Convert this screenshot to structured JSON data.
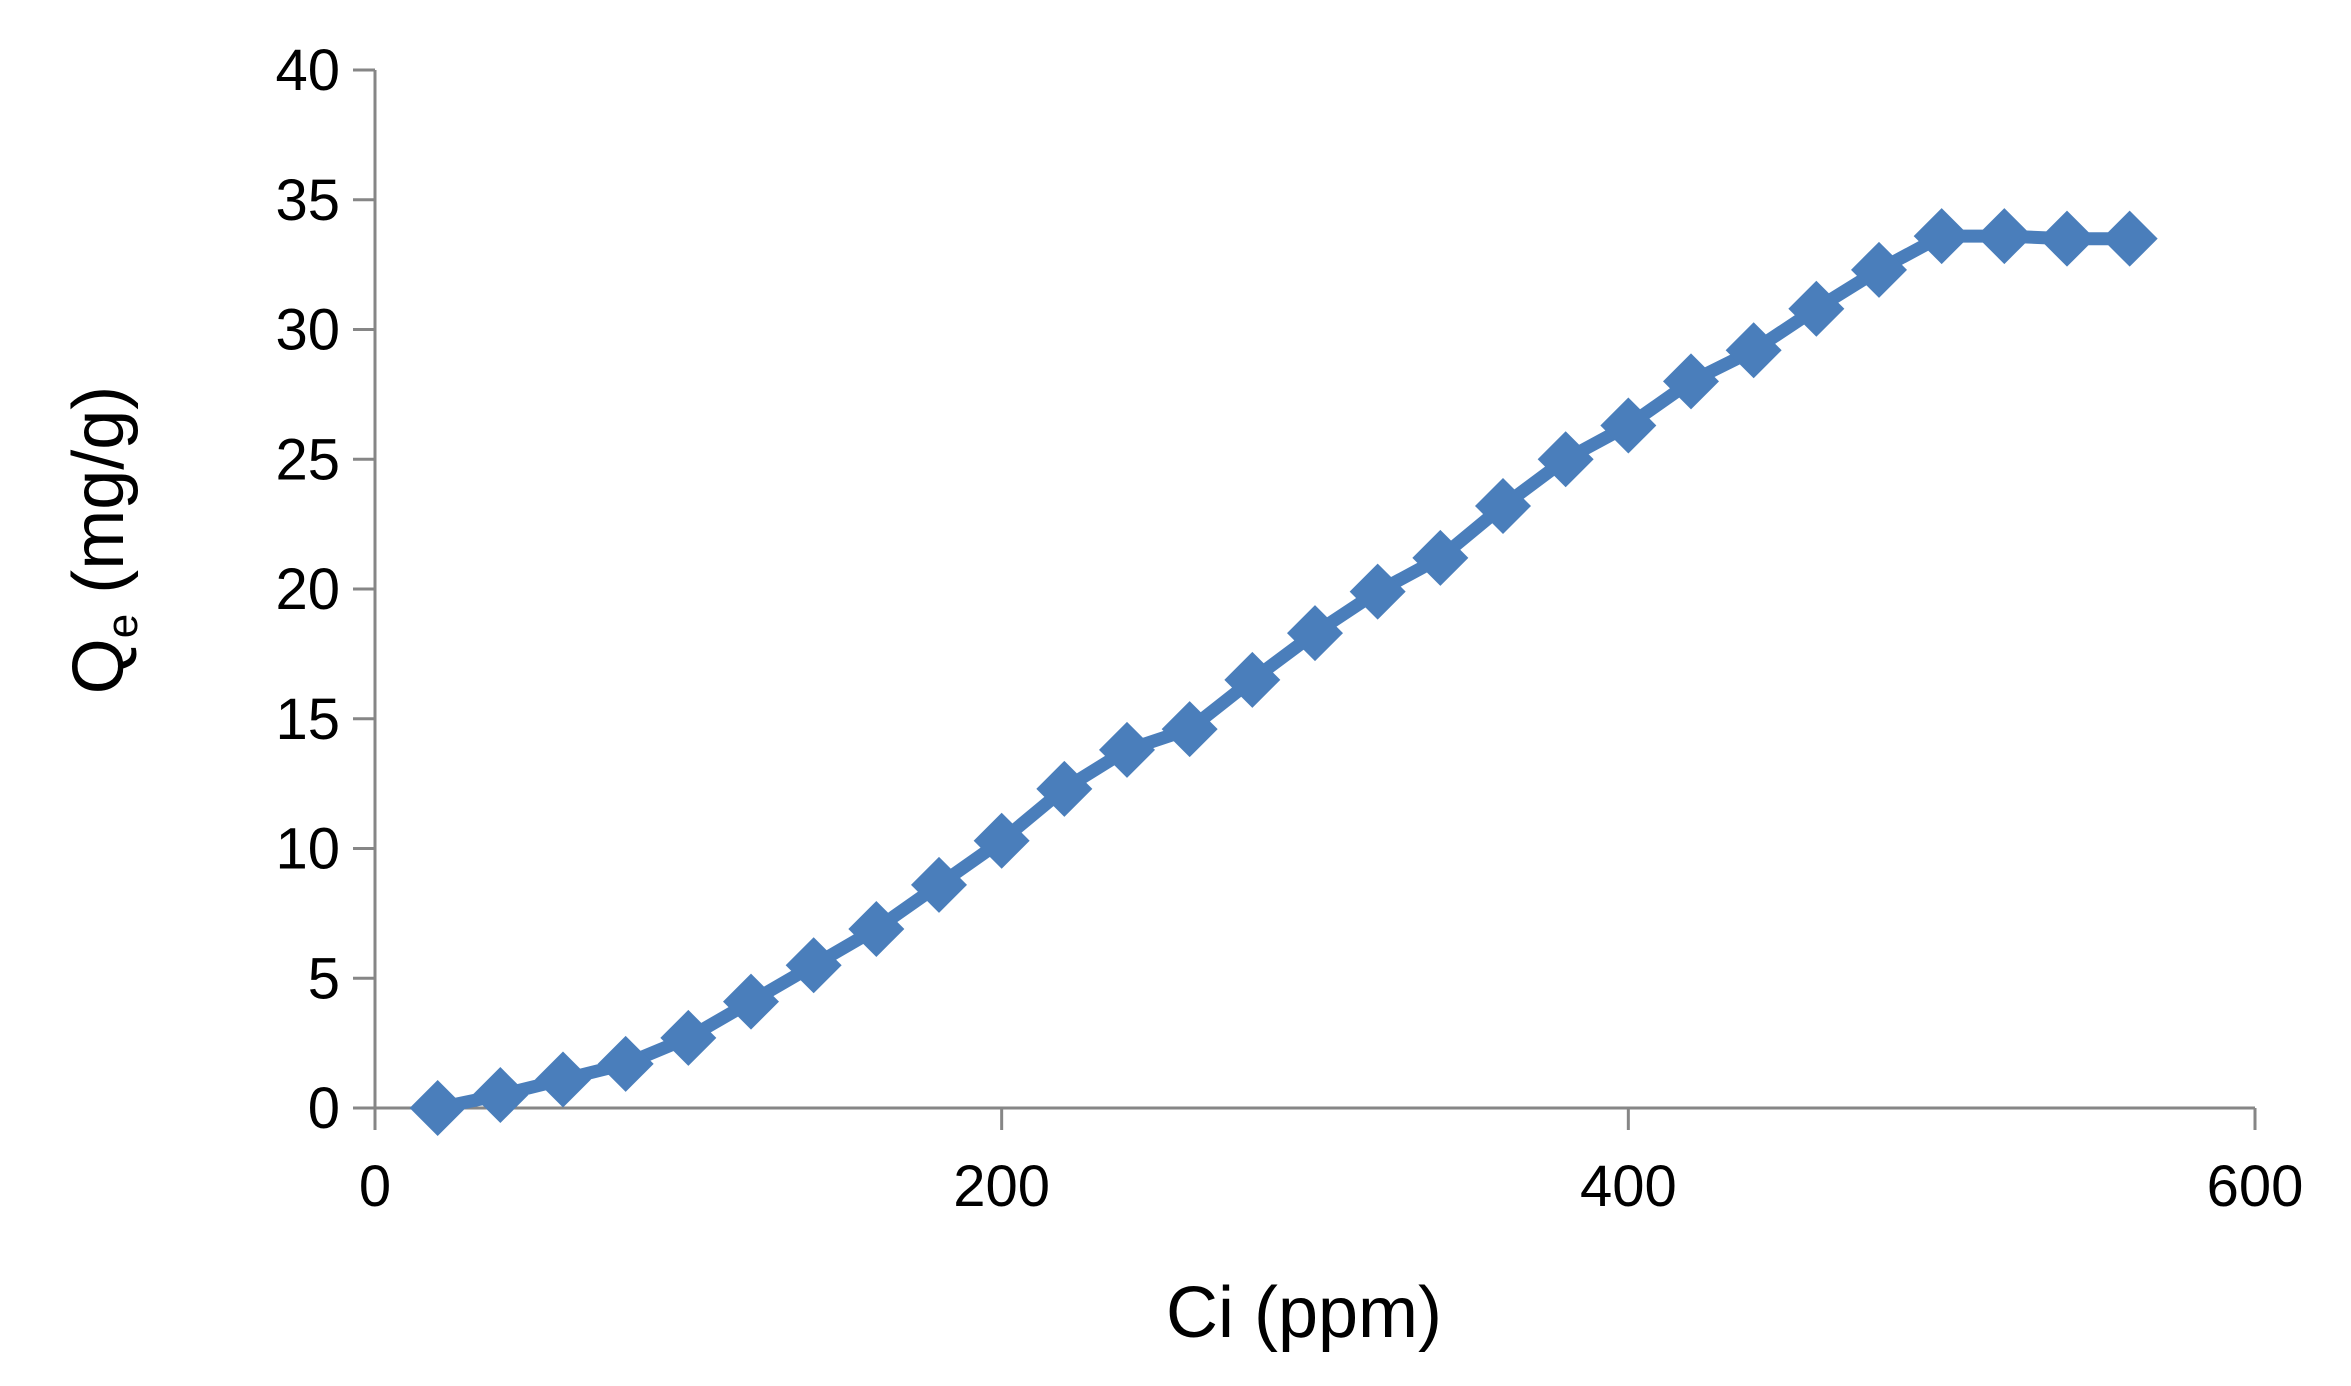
{
  "chart_data": {
    "type": "line",
    "title": "",
    "xlabel": "Ci (ppm)",
    "ylabel": {
      "main": "Q",
      "subscript": "e",
      "unit": " (mg/g)"
    },
    "xlim": [
      0,
      600
    ],
    "ylim": [
      0,
      40
    ],
    "xticks": [
      0,
      200,
      400,
      600
    ],
    "xtick_labels": [
      "0",
      "200",
      "400",
      "600"
    ],
    "yticks": [
      0,
      5,
      10,
      15,
      20,
      25,
      30,
      35,
      40
    ],
    "ytick_labels": [
      "0",
      "5",
      "10",
      "15",
      "20",
      "25",
      "30",
      "35",
      "40"
    ],
    "grid": false,
    "legend": "none",
    "marker": "diamond",
    "series": [
      {
        "color": "#4a7ebb",
        "x": [
          20,
          40,
          60,
          80,
          100,
          120,
          140,
          160,
          180,
          200,
          220,
          240,
          260,
          280,
          300,
          320,
          340,
          360,
          380,
          400,
          420,
          440,
          460,
          480,
          500,
          520,
          540,
          560
        ],
        "y": [
          0.0,
          0.5,
          1.1,
          1.7,
          2.7,
          4.1,
          5.5,
          6.9,
          8.6,
          10.3,
          12.3,
          13.8,
          14.6,
          16.5,
          18.3,
          19.9,
          21.2,
          23.2,
          25.0,
          26.3,
          28.0,
          29.2,
          30.8,
          32.3,
          33.6,
          33.6,
          33.5,
          33.5
        ]
      }
    ]
  }
}
